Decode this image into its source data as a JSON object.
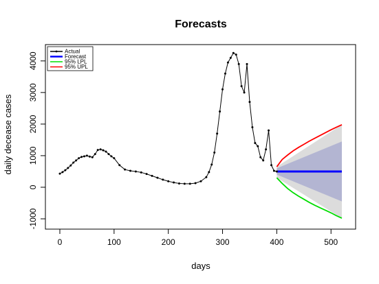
{
  "chart_data": {
    "type": "line",
    "title": "Forecasts",
    "xlabel": "days",
    "ylabel": "daily decease cases",
    "xlim": [
      0,
      520
    ],
    "ylim": [
      -1000,
      4300
    ],
    "xticks": [
      0,
      100,
      200,
      300,
      400,
      500
    ],
    "yticks": [
      -1000,
      0,
      1000,
      2000,
      3000,
      4000
    ],
    "legend_position": "top-left",
    "legend": [
      {
        "name": "Actual",
        "color": "#000000"
      },
      {
        "name": "Forecast",
        "color": "#0000ff"
      },
      {
        "name": "95% LPL",
        "color": "#00dd00"
      },
      {
        "name": "95% UPL",
        "color": "#ff0000"
      }
    ],
    "series": [
      {
        "name": "Actual",
        "color": "#000000",
        "x": [
          0,
          5,
          10,
          15,
          20,
          25,
          30,
          35,
          40,
          45,
          50,
          55,
          60,
          65,
          70,
          75,
          80,
          85,
          90,
          95,
          100,
          110,
          120,
          130,
          140,
          150,
          160,
          170,
          180,
          190,
          200,
          210,
          220,
          230,
          240,
          250,
          260,
          270,
          275,
          280,
          285,
          290,
          295,
          300,
          305,
          310,
          315,
          320,
          325,
          330,
          335,
          340,
          345,
          350,
          355,
          360,
          365,
          370,
          375,
          380,
          385,
          390,
          395,
          400
        ],
        "y": [
          430,
          480,
          540,
          610,
          690,
          780,
          850,
          920,
          960,
          980,
          1000,
          970,
          950,
          1050,
          1180,
          1200,
          1170,
          1130,
          1050,
          980,
          920,
          700,
          560,
          520,
          500,
          470,
          420,
          360,
          300,
          240,
          190,
          150,
          120,
          110,
          110,
          130,
          190,
          320,
          480,
          720,
          1100,
          1700,
          2400,
          3100,
          3600,
          3950,
          4100,
          4250,
          4200,
          3900,
          3200,
          3000,
          3900,
          2700,
          1900,
          1400,
          1300,
          950,
          850,
          1200,
          1800,
          700,
          520,
          500
        ]
      },
      {
        "name": "Forecast",
        "color": "#0000ff",
        "x": [
          400,
          520
        ],
        "y": [
          500,
          500
        ]
      },
      {
        "name": "95% LPL",
        "color": "#00dd00",
        "x": [
          400,
          410,
          420,
          430,
          440,
          450,
          460,
          470,
          480,
          490,
          500,
          510,
          520
        ],
        "y": [
          300,
          120,
          -40,
          -170,
          -280,
          -380,
          -480,
          -570,
          -650,
          -730,
          -810,
          -900,
          -980
        ]
      },
      {
        "name": "95% UPL",
        "color": "#ff0000",
        "x": [
          400,
          410,
          420,
          430,
          440,
          450,
          460,
          470,
          480,
          490,
          500,
          510,
          520
        ],
        "y": [
          650,
          880,
          1020,
          1150,
          1260,
          1360,
          1460,
          1550,
          1640,
          1730,
          1820,
          1900,
          1980
        ]
      }
    ],
    "bands": [
      {
        "color": "#dcdcdc",
        "x": [
          400,
          520
        ],
        "lower": [
          300,
          -980
        ],
        "upper": [
          650,
          1980
        ]
      },
      {
        "color": "#b3b5d2",
        "x": [
          400,
          520
        ],
        "lower": [
          400,
          -450
        ],
        "upper": [
          600,
          1450
        ]
      }
    ]
  }
}
